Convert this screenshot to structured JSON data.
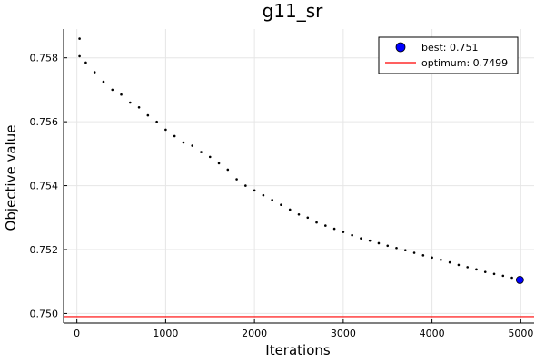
{
  "chart_data": {
    "type": "scatter",
    "title": "g11_sr",
    "xlabel": "Iterations",
    "ylabel": "Objective value",
    "xlim": [
      -150,
      5150
    ],
    "ylim": [
      0.7497,
      0.7589
    ],
    "xticks": [
      0,
      1000,
      2000,
      3000,
      4000,
      5000
    ],
    "xtick_labels": [
      "0",
      "1000",
      "2000",
      "3000",
      "4000",
      "5000"
    ],
    "yticks": [
      0.75,
      0.752,
      0.754,
      0.756,
      0.758
    ],
    "ytick_labels": [
      "0.750",
      "0.752",
      "0.754",
      "0.756",
      "0.758"
    ],
    "grid": true,
    "legend_position": "top-right",
    "colors": {
      "trace": "#000000",
      "best": "#0000ff",
      "optimum": "#ff0000"
    },
    "series": [
      {
        "name": "trace",
        "kind": "scatter",
        "x": [
          30,
          100,
          200,
          300,
          400,
          500,
          600,
          700,
          800,
          900,
          1000,
          1100,
          1200,
          1300,
          1400,
          1500,
          1600,
          1700,
          1800,
          1900,
          2000,
          2100,
          2200,
          2300,
          2400,
          2500,
          2600,
          2700,
          2800,
          2900,
          3000,
          3100,
          3200,
          3300,
          3400,
          3500,
          3600,
          3700,
          3800,
          3900,
          4000,
          4100,
          4200,
          4300,
          4400,
          4500,
          4600,
          4700,
          4800,
          4900,
          4990
        ],
        "y": [
          0.75805,
          0.75785,
          0.75755,
          0.75725,
          0.757,
          0.75685,
          0.7566,
          0.75645,
          0.7562,
          0.756,
          0.75575,
          0.75555,
          0.75535,
          0.75525,
          0.75505,
          0.7549,
          0.7547,
          0.7545,
          0.7542,
          0.754,
          0.75385,
          0.7537,
          0.75355,
          0.7534,
          0.75325,
          0.7531,
          0.753,
          0.75285,
          0.75275,
          0.75265,
          0.75255,
          0.75245,
          0.75235,
          0.75228,
          0.7522,
          0.75212,
          0.75205,
          0.75198,
          0.7519,
          0.75182,
          0.75175,
          0.75168,
          0.7516,
          0.75152,
          0.75145,
          0.75138,
          0.7513,
          0.75124,
          0.75118,
          0.75112,
          0.75105
        ]
      },
      {
        "name": "outlier",
        "kind": "scatter",
        "x": [
          30
        ],
        "y": [
          0.7586
        ]
      },
      {
        "name": "best: 0.751",
        "kind": "marker",
        "x": [
          4990
        ],
        "y": [
          0.75105
        ]
      },
      {
        "name": "optimum: 0.7499",
        "kind": "hline",
        "y": 0.7499
      }
    ],
    "legend": [
      {
        "label": "best: 0.751",
        "type": "marker"
      },
      {
        "label": "optimum: 0.7499",
        "type": "line"
      }
    ]
  }
}
